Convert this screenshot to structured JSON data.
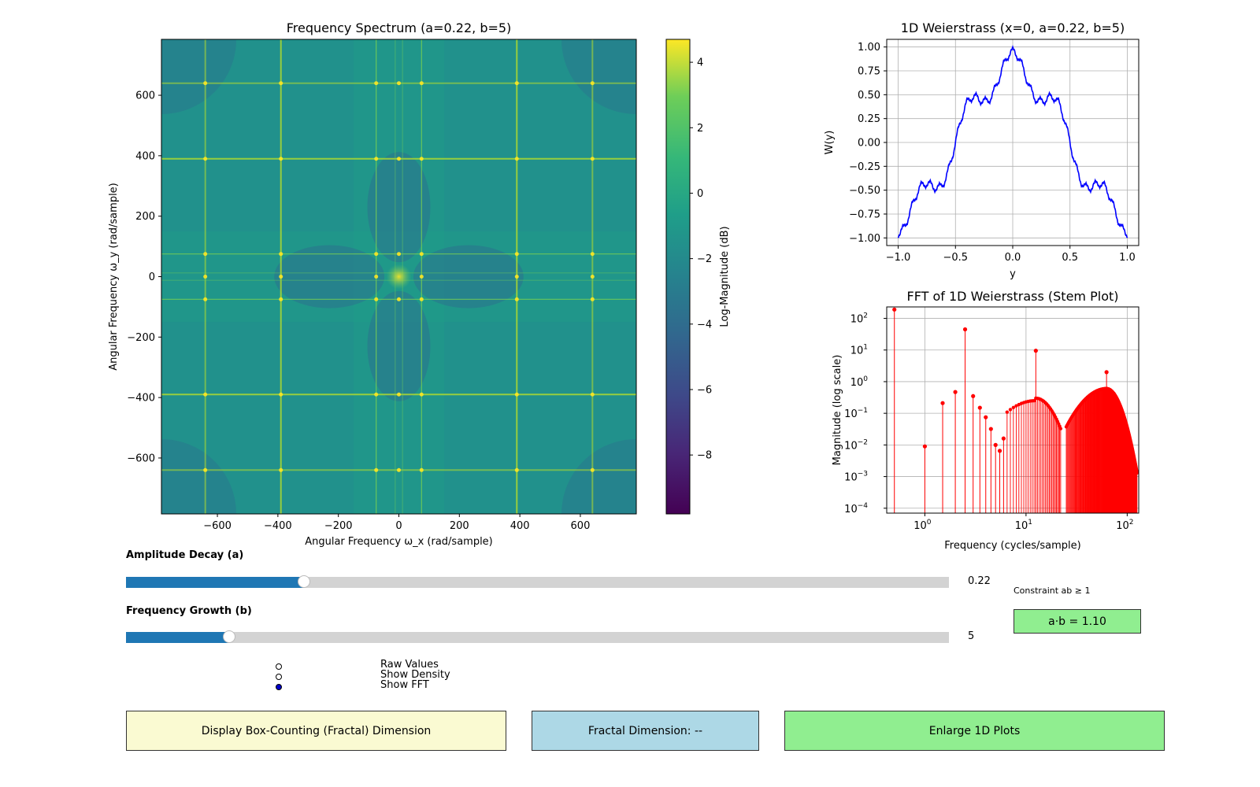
{
  "chart_data": [
    {
      "type": "heatmap",
      "title": "Frequency Spectrum (a=0.22, b=5)",
      "xlabel": "Angular Frequency ω_x (rad/sample)",
      "ylabel": "Angular Frequency ω_y (rad/sample)",
      "xlim": [
        -785,
        785
      ],
      "ylim": [
        -785,
        785
      ],
      "xticks": [
        -600,
        -400,
        -200,
        0,
        200,
        400,
        600
      ],
      "yticks": [
        600,
        400,
        200,
        0,
        -200,
        -400,
        -600
      ],
      "colorbar": {
        "label": "Log-Magnitude (dB)",
        "range": [
          -9.8,
          4.7
        ],
        "ticks": [
          4,
          2,
          0,
          -2,
          -4,
          -6,
          -8
        ],
        "colormap": "viridis"
      },
      "peak_frequencies": [
        -640,
        -390,
        -75,
        0,
        75,
        390,
        640
      ]
    },
    {
      "type": "line",
      "title": "1D Weierstrass (x=0, a=0.22, b=5)",
      "xlabel": "y",
      "ylabel": "W(y)",
      "xlim": [
        -1.0,
        1.0
      ],
      "ylim": [
        -1.0,
        1.0
      ],
      "xticks": [
        -1.0,
        -0.5,
        0.0,
        0.5,
        1.0
      ],
      "yticks": [
        1.0,
        0.75,
        0.5,
        0.25,
        0.0,
        -0.25,
        -0.5,
        -0.75,
        -1.0
      ],
      "grid": true,
      "series": [
        {
          "color": "#0000ff",
          "function": "sum_n a^n cos(b^n pi y), a=0.22, b=5"
        }
      ]
    },
    {
      "type": "scatter",
      "title": "FFT of 1D Weierstrass (Stem Plot)",
      "xlabel": "Frequency (cycles/sample)",
      "ylabel": "Magnitude (log scale)",
      "xscale": "log",
      "yscale": "log",
      "xlim": [
        0.42,
        130
      ],
      "ylim": [
        7e-05,
        230
      ],
      "grid": true,
      "series": [
        {
          "color": "#ff0000",
          "x": [
            0.5,
            1.0,
            1.5,
            2.0,
            2.5,
            3.0,
            3.5,
            4.0,
            4.5,
            5.0,
            5.5,
            6.0,
            12.5,
            62.5
          ],
          "values": [
            190,
            0.009,
            0.21,
            0.47,
            45,
            0.35,
            0.15,
            0.075,
            0.032,
            0.01,
            0.0065,
            0.016,
            9.5,
            2.0
          ]
        }
      ]
    }
  ],
  "controls": {
    "amplitude": {
      "label": "Amplitude Decay (a)",
      "value_text": "0.22",
      "fraction": 0.216
    },
    "frequency": {
      "label": "Frequency Growth (b)",
      "value_text": "5",
      "fraction": 0.125
    },
    "constraint_label": "Constraint ab ≥ 1",
    "ab_value": "a·b = 1.10",
    "radio": [
      {
        "label": "Raw Values",
        "checked": false
      },
      {
        "label": "Show Density",
        "checked": false
      },
      {
        "label": "Show FFT",
        "checked": true
      }
    ],
    "buttons": {
      "fractal": "Display Box-Counting (Fractal) Dimension",
      "dimension": "Fractal Dimension: --",
      "enlarge": "Enlarge 1D Plots"
    }
  },
  "colors": {
    "slider_fill": "#1f77b4",
    "ab_box": "#90ee90",
    "fractal_btn": "#fafad2",
    "dimension_btn": "#add8e6",
    "enlarge_btn": "#90ee90"
  }
}
